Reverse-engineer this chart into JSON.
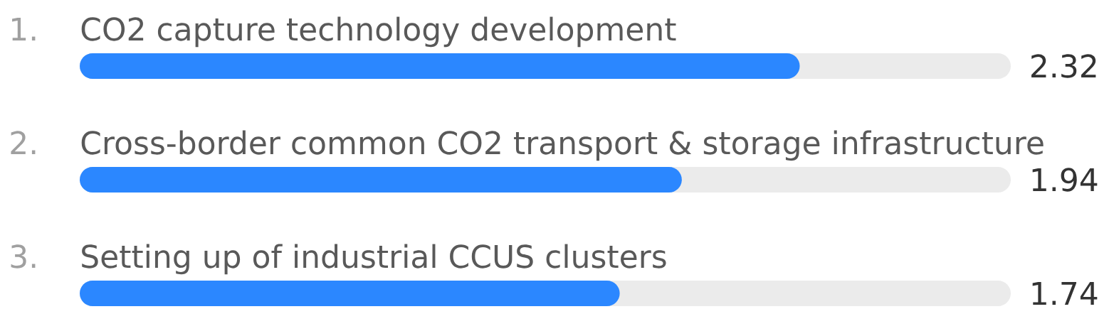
{
  "chart_data": {
    "type": "bar",
    "orientation": "horizontal",
    "categories": [
      "CO2 capture technology development",
      "Cross-border common CO2 transport & storage infrastructure",
      "Setting up of industrial CCUS clusters"
    ],
    "values": [
      2.32,
      1.94,
      1.74
    ],
    "color": "#2b87ff",
    "xlim": [
      0,
      3
    ],
    "data_labels": true,
    "annotations": [
      "1.",
      "2.",
      "3."
    ]
  }
}
